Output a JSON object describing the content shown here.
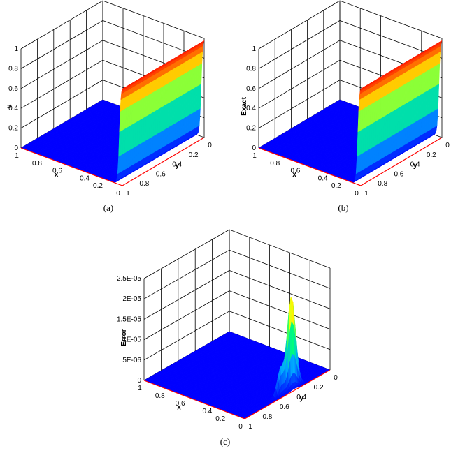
{
  "chart_data": [
    {
      "type": "surface",
      "panel_caption": "(a)",
      "zlabel": "u",
      "xlabel": "x",
      "ylabel": "y",
      "x_ticks": [
        "1",
        "0.8",
        "0.6",
        "0.4",
        "0.2",
        "0"
      ],
      "y_ticks": [
        "1",
        "0.8",
        "0.6",
        "0.4",
        "0.2",
        "0"
      ],
      "z_ticks": [
        "0",
        "0.2",
        "0.4",
        "0.6",
        "0.8",
        "1"
      ],
      "zlim": [
        0,
        1
      ],
      "grid": true,
      "colormap": [
        "#0000ff",
        "#00a0ff",
        "#00ff80",
        "#ffff00",
        "#ff0000"
      ],
      "description_values": {
        "baseline": 0,
        "ridge_max": 1,
        "ridge_location": "x near 0, front-to-back along y"
      }
    },
    {
      "type": "surface",
      "panel_caption": "(b)",
      "zlabel": "Exact",
      "xlabel": "x",
      "ylabel": "y",
      "x_ticks": [
        "1",
        "0.8",
        "0.6",
        "0.4",
        "0.2",
        "0"
      ],
      "y_ticks": [
        "1",
        "0.8",
        "0.6",
        "0.4",
        "0.2",
        "0"
      ],
      "z_ticks": [
        "0",
        "0.2",
        "0.4",
        "0.6",
        "0.8",
        "1"
      ],
      "zlim": [
        0,
        1
      ],
      "grid": true,
      "colormap": [
        "#0000ff",
        "#00a0ff",
        "#00ff80",
        "#ffff00",
        "#ff0000"
      ],
      "description_values": {
        "baseline": 0,
        "ridge_max": 1,
        "ridge_location": "x near 0, front-to-back along y"
      }
    },
    {
      "type": "surface",
      "panel_caption": "(c)",
      "zlabel": "Error",
      "xlabel": "x",
      "ylabel": "y",
      "x_ticks": [
        "1",
        "0.8",
        "0.6",
        "0.4",
        "0.2",
        "0"
      ],
      "y_ticks": [
        "1",
        "0.8",
        "0.6",
        "0.4",
        "0.2",
        "0"
      ],
      "z_ticks": [
        "0",
        "5E-06",
        "1E-05",
        "1.5E-05",
        "2E-05",
        "2.5E-05"
      ],
      "zlim": [
        0,
        2.5e-05
      ],
      "grid": true,
      "colormap": [
        "#0000ff",
        "#00a0ff",
        "#00ff80",
        "#ffff00",
        "#ff0000"
      ],
      "description_values": {
        "baseline": 0,
        "peak_max": 2.3e-05,
        "peak_location": "x near 0, y near 0.4"
      }
    }
  ]
}
